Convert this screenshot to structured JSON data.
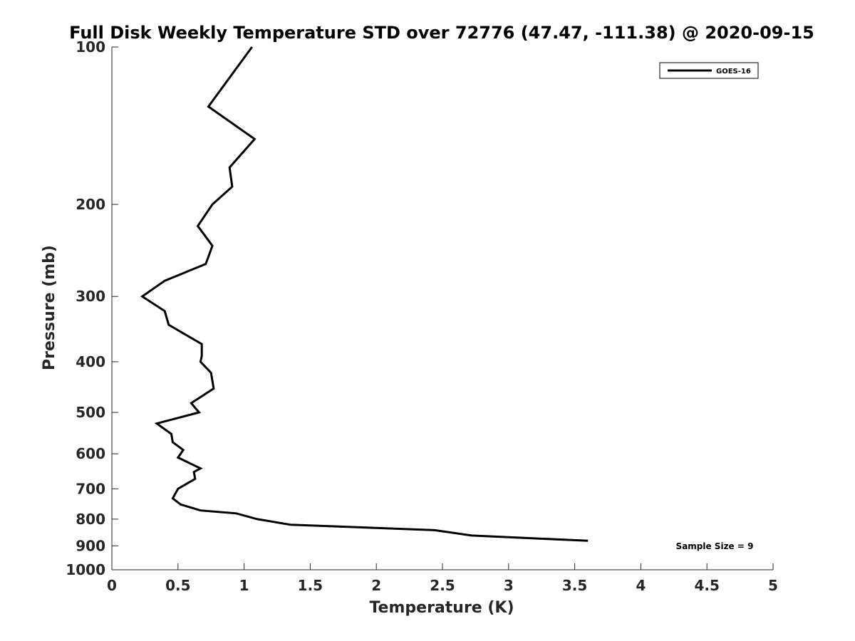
{
  "chart_data": {
    "type": "line",
    "title": "Full Disk Weekly Temperature STD over 72776 (47.47, -111.38) @ 2020-09-15",
    "xlabel": "Temperature (K)",
    "ylabel": "Pressure (mb)",
    "xlim": [
      0,
      5
    ],
    "ylim": [
      100,
      1000
    ],
    "yscale": "log",
    "y_reversed": true,
    "grid": false,
    "legend_position": "top-right",
    "x_ticks": [
      "0",
      "0.5",
      "1",
      "1.5",
      "2",
      "2.5",
      "3",
      "3.5",
      "4",
      "4.5",
      "5"
    ],
    "y_ticks": [
      "100",
      "200",
      "300",
      "400",
      "500",
      "600",
      "700",
      "800",
      "900",
      "1000"
    ],
    "series": [
      {
        "name": "GOES-16",
        "color": "#000000",
        "x": [
          1.06,
          0.73,
          1.08,
          0.89,
          0.91,
          0.76,
          0.65,
          0.76,
          0.71,
          0.4,
          0.23,
          0.4,
          0.43,
          0.68,
          0.68,
          0.67,
          0.75,
          0.77,
          0.6,
          0.63,
          0.66,
          0.34,
          0.45,
          0.46,
          0.54,
          0.5,
          0.67,
          0.62,
          0.63,
          0.5,
          0.46,
          0.52,
          0.67,
          0.94,
          1.1,
          1.35,
          2.44,
          2.72,
          3.6
        ],
        "y": [
          100,
          130,
          150,
          170,
          185,
          200,
          220,
          240,
          260,
          280,
          300,
          320,
          340,
          370,
          390,
          400,
          420,
          450,
          480,
          490,
          500,
          525,
          550,
          570,
          590,
          610,
          640,
          650,
          670,
          700,
          730,
          750,
          770,
          780,
          800,
          820,
          840,
          860,
          880
        ]
      }
    ],
    "annotations": [
      "Sample Size = 9"
    ]
  }
}
